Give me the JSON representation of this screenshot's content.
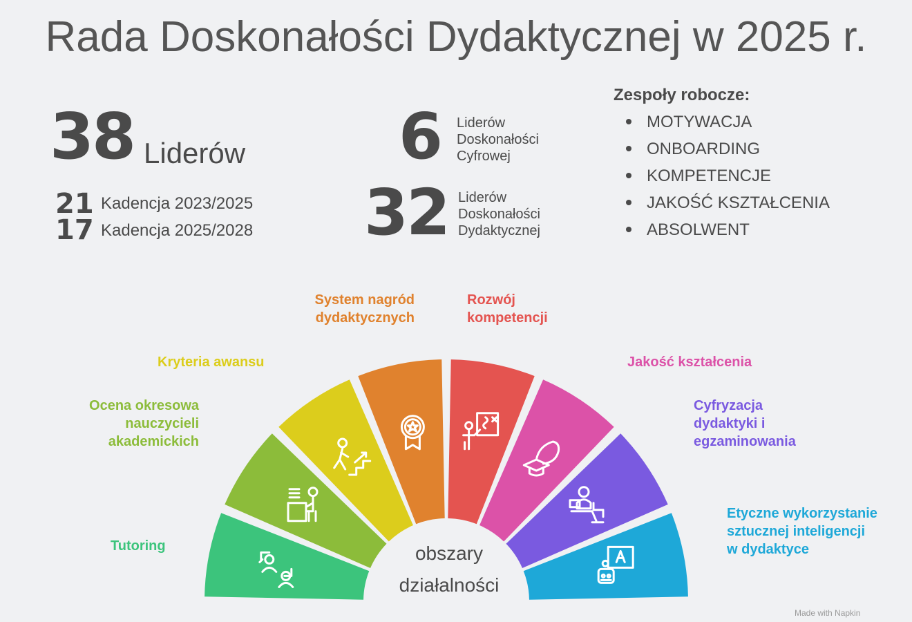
{
  "title": "Rada Doskonałości Dydaktycznej w 2025 r.",
  "stats": {
    "leaders_total": "38",
    "leaders_total_label": "Liderów",
    "kad1_num": "21",
    "kad1_label": "Kadencja 2023/2025",
    "kad2_num": "17",
    "kad2_label": "Kadencja 2025/2028",
    "digital_num": "6",
    "digital_label": [
      "Liderów",
      "Doskonałości",
      "Cyfrowej"
    ],
    "didactic_num": "32",
    "didactic_label": [
      "Liderów",
      "Doskonałości",
      "Dydaktycznej"
    ]
  },
  "teams": {
    "title": "Zespoły robocze:",
    "items": [
      "MOTYWACJA",
      "ONBOARDING",
      "KOMPETENCJE",
      "JAKOŚĆ KSZTAŁCENIA",
      "ABSOLWENT"
    ]
  },
  "center": {
    "line1": "obszary",
    "line2": "działalności"
  },
  "areas": [
    {
      "label": "Tutoring",
      "color": "#3cc47c",
      "icon": "tutoring-swap-people-icon"
    },
    {
      "label": "Ocena  okresowa\nnauczycieli\nakademickich",
      "color": "#8cbc3a",
      "icon": "teacher-at-desk-icon"
    },
    {
      "label": "Kryteria awansu",
      "color": "#dccd1c",
      "icon": "person-climbing-stairs-icon"
    },
    {
      "label": "System nagród\ndydaktycznych",
      "color": "#e0822e",
      "icon": "award-medal-icon"
    },
    {
      "label": "Rozwój\nkompetencji",
      "color": "#e45450",
      "icon": "teacher-at-board-icon"
    },
    {
      "label": "Jakość kształcenia",
      "color": "#dc52a8",
      "icon": "graduation-cap-icon"
    },
    {
      "label": "Cyfryzacja\ndydaktyki i\negzaminowania",
      "color": "#7a5ae0",
      "icon": "person-at-laptop-icon"
    },
    {
      "label": "Etyczne wykorzystanie\nsztucznej inteligencji\nw dydaktyce",
      "color": "#1ea8d8",
      "icon": "robot-ai-board-icon"
    }
  ],
  "credit": "Made with Napkin"
}
